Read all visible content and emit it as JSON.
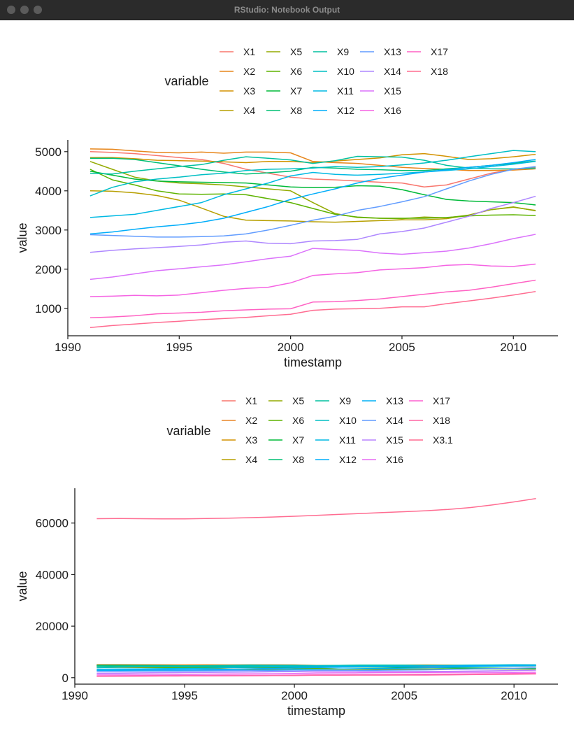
{
  "window": {
    "title": "RStudio: Notebook Output"
  },
  "colors": {
    "X1": "#F8766D",
    "X2": "#E7861B",
    "X3": "#D39200",
    "X4": "#B79F00",
    "X5": "#93AA00",
    "X6": "#5EB300",
    "X7": "#00BA38",
    "X8": "#00BF74",
    "X9": "#00C19F",
    "X10": "#00BFC4",
    "X11": "#00B9E3",
    "X12": "#00ADFA",
    "X13": "#619CFF",
    "X14": "#AE87FF",
    "X15": "#DB72FB",
    "X16": "#F564E3",
    "X17": "#FF61C3",
    "X18": "#FF6C91"
  },
  "colors2": {
    "X1": "#F8766D",
    "X2": "#E88526",
    "X3": "#D39200",
    "X4": "#B79F00",
    "X5": "#93AA00",
    "X6": "#5EB300",
    "X7": "#00BA38",
    "X8": "#00BF74",
    "X9": "#00C19F",
    "X10": "#00BFC4",
    "X11": "#00B9E3",
    "X12": "#00ADFA",
    "X13": "#00B0F6",
    "X14": "#619CFF",
    "X15": "#B983FF",
    "X16": "#E76BF3",
    "X17": "#FD61D1",
    "X18": "#FF67A4",
    "X3.1": "#FF6C91"
  },
  "chart_data": [
    {
      "type": "line",
      "xlabel": "timestamp",
      "ylabel": "value",
      "legend_title": "variable",
      "legend_position": "top",
      "grid": false,
      "xlim": [
        1990,
        2012
      ],
      "ylim": [
        300,
        5300
      ],
      "x_ticks": [
        "1990",
        "1995",
        "2000",
        "2005",
        "2010"
      ],
      "y_ticks": [
        "1000",
        "2000",
        "3000",
        "4000",
        "5000"
      ],
      "x_tick_values": [
        1990,
        1995,
        2000,
        2005,
        2010
      ],
      "y_tick_values": [
        1000,
        2000,
        3000,
        4000,
        5000
      ],
      "x": [
        1991,
        1992,
        1993,
        1994,
        1995,
        1996,
        1997,
        1998,
        1999,
        2000,
        2001,
        2002,
        2003,
        2004,
        2005,
        2006,
        2007,
        2008,
        2009,
        2010,
        2011
      ],
      "series": [
        {
          "name": "X1",
          "values": [
            5000,
            4980,
            4950,
            4900,
            4850,
            4800,
            4700,
            4550,
            4450,
            4350,
            4300,
            4280,
            4250,
            4220,
            4200,
            4100,
            4150,
            4300,
            4450,
            4550,
            4600
          ]
        },
        {
          "name": "X2",
          "values": [
            5070,
            5060,
            5020,
            4980,
            4970,
            4990,
            4960,
            4990,
            4990,
            4970,
            4750,
            4720,
            4700,
            4650,
            4600,
            4570,
            4550,
            4520,
            4520,
            4530,
            4560
          ]
        },
        {
          "name": "X3",
          "values": [
            4850,
            4850,
            4820,
            4780,
            4770,
            4760,
            4740,
            4720,
            4750,
            4750,
            4720,
            4760,
            4800,
            4840,
            4920,
            4950,
            4880,
            4800,
            4820,
            4870,
            4930
          ]
        },
        {
          "name": "X4",
          "values": [
            4000,
            3990,
            3950,
            3880,
            3760,
            3560,
            3350,
            3250,
            3240,
            3230,
            3210,
            3200,
            3220,
            3240,
            3260,
            3260,
            3290,
            3380,
            3520,
            3580,
            3500
          ]
        },
        {
          "name": "X5",
          "values": [
            4750,
            4550,
            4350,
            4250,
            4200,
            4180,
            4150,
            4100,
            4050,
            4000,
            3700,
            3420,
            3320,
            3300,
            3290,
            3330,
            3310,
            3380,
            3520,
            3590,
            3490
          ]
        },
        {
          "name": "X6",
          "values": [
            4550,
            4280,
            4150,
            4000,
            3920,
            3910,
            3920,
            3900,
            3800,
            3700,
            3550,
            3400,
            3330,
            3300,
            3300,
            3300,
            3320,
            3360,
            3380,
            3390,
            3370
          ]
        },
        {
          "name": "X7",
          "values": [
            4500,
            4400,
            4300,
            4250,
            4230,
            4220,
            4210,
            4200,
            4150,
            4100,
            4080,
            4090,
            4130,
            4120,
            4030,
            3900,
            3780,
            3740,
            3720,
            3700,
            3640
          ]
        },
        {
          "name": "X8",
          "values": [
            4830,
            4830,
            4800,
            4720,
            4640,
            4550,
            4480,
            4430,
            4460,
            4500,
            4600,
            4580,
            4550,
            4540,
            4520,
            4520,
            4560,
            4600,
            4650,
            4700,
            4760
          ]
        },
        {
          "name": "X9",
          "values": [
            4450,
            4430,
            4500,
            4560,
            4620,
            4670,
            4780,
            4870,
            4830,
            4790,
            4700,
            4770,
            4880,
            4870,
            4860,
            4780,
            4650,
            4580,
            4560,
            4560,
            4580
          ]
        },
        {
          "name": "X10",
          "values": [
            3870,
            4090,
            4230,
            4300,
            4350,
            4410,
            4450,
            4520,
            4550,
            4560,
            4580,
            4620,
            4600,
            4620,
            4660,
            4710,
            4780,
            4870,
            4950,
            5030,
            5000
          ]
        },
        {
          "name": "X11",
          "values": [
            3320,
            3360,
            3400,
            3500,
            3600,
            3700,
            3900,
            4050,
            4200,
            4380,
            4470,
            4420,
            4400,
            4420,
            4450,
            4480,
            4520,
            4560,
            4620,
            4680,
            4750
          ]
        },
        {
          "name": "X12",
          "values": [
            2900,
            2950,
            3020,
            3080,
            3130,
            3200,
            3300,
            3450,
            3600,
            3780,
            3920,
            4050,
            4200,
            4320,
            4400,
            4480,
            4540,
            4600,
            4650,
            4720,
            4800
          ]
        },
        {
          "name": "X13",
          "values": [
            2880,
            2860,
            2840,
            2820,
            2820,
            2830,
            2850,
            2900,
            3000,
            3120,
            3250,
            3350,
            3500,
            3600,
            3720,
            3850,
            4050,
            4250,
            4420,
            4550,
            4620
          ]
        },
        {
          "name": "X14",
          "values": [
            2430,
            2480,
            2520,
            2550,
            2580,
            2620,
            2690,
            2720,
            2660,
            2650,
            2720,
            2730,
            2760,
            2900,
            2960,
            3050,
            3200,
            3350,
            3550,
            3700,
            3860
          ]
        },
        {
          "name": "X15",
          "values": [
            1740,
            1800,
            1880,
            1960,
            2010,
            2060,
            2110,
            2190,
            2270,
            2330,
            2530,
            2500,
            2480,
            2410,
            2380,
            2420,
            2460,
            2540,
            2650,
            2780,
            2890
          ]
        },
        {
          "name": "X16",
          "values": [
            1300,
            1310,
            1330,
            1320,
            1340,
            1400,
            1460,
            1510,
            1540,
            1650,
            1840,
            1880,
            1910,
            1980,
            2010,
            2040,
            2100,
            2120,
            2080,
            2070,
            2130
          ]
        },
        {
          "name": "X17",
          "values": [
            760,
            780,
            810,
            860,
            880,
            900,
            940,
            960,
            980,
            990,
            1160,
            1170,
            1200,
            1240,
            1300,
            1360,
            1420,
            1460,
            1540,
            1630,
            1720
          ]
        },
        {
          "name": "X18",
          "values": [
            510,
            560,
            600,
            640,
            670,
            710,
            740,
            770,
            810,
            850,
            950,
            980,
            990,
            1000,
            1040,
            1040,
            1120,
            1190,
            1260,
            1340,
            1430
          ]
        }
      ]
    },
    {
      "type": "line",
      "xlabel": "timestamp",
      "ylabel": "value",
      "legend_title": "variable",
      "legend_position": "top",
      "grid": false,
      "xlim": [
        1990,
        2012
      ],
      "ylim": [
        -2500,
        73500
      ],
      "x_ticks": [
        "1990",
        "1995",
        "2000",
        "2005",
        "2010"
      ],
      "y_ticks": [
        "0",
        "20000",
        "40000",
        "60000"
      ],
      "x_tick_values": [
        1990,
        1995,
        2000,
        2005,
        2010
      ],
      "y_tick_values": [
        0,
        20000,
        40000,
        60000
      ],
      "x": [
        1991,
        1992,
        1993,
        1994,
        1995,
        1996,
        1997,
        1998,
        1999,
        2000,
        2001,
        2002,
        2003,
        2004,
        2005,
        2006,
        2007,
        2008,
        2009,
        2010,
        2011
      ],
      "series": [
        {
          "name": "X1",
          "values": [
            5000,
            4980,
            4950,
            4900,
            4850,
            4800,
            4700,
            4550,
            4450,
            4350,
            4300,
            4280,
            4250,
            4220,
            4200,
            4100,
            4150,
            4300,
            4450,
            4550,
            4600
          ]
        },
        {
          "name": "X2",
          "values": [
            5070,
            5060,
            5020,
            4980,
            4970,
            4990,
            4960,
            4990,
            4990,
            4970,
            4750,
            4720,
            4700,
            4650,
            4600,
            4570,
            4550,
            4520,
            4520,
            4530,
            4560
          ]
        },
        {
          "name": "X3",
          "values": [
            4850,
            4850,
            4820,
            4780,
            4770,
            4760,
            4740,
            4720,
            4750,
            4750,
            4720,
            4760,
            4800,
            4840,
            4920,
            4950,
            4880,
            4800,
            4820,
            4870,
            4930
          ]
        },
        {
          "name": "X4",
          "values": [
            4000,
            3990,
            3950,
            3880,
            3760,
            3560,
            3350,
            3250,
            3240,
            3230,
            3210,
            3200,
            3220,
            3240,
            3260,
            3260,
            3290,
            3380,
            3520,
            3580,
            3500
          ]
        },
        {
          "name": "X5",
          "values": [
            4750,
            4550,
            4350,
            4250,
            4200,
            4180,
            4150,
            4100,
            4050,
            4000,
            3700,
            3420,
            3320,
            3300,
            3290,
            3330,
            3310,
            3380,
            3520,
            3590,
            3490
          ]
        },
        {
          "name": "X6",
          "values": [
            4550,
            4280,
            4150,
            4000,
            3920,
            3910,
            3920,
            3900,
            3800,
            3700,
            3550,
            3400,
            3330,
            3300,
            3300,
            3300,
            3320,
            3360,
            3380,
            3390,
            3370
          ]
        },
        {
          "name": "X7",
          "values": [
            4500,
            4400,
            4300,
            4250,
            4230,
            4220,
            4210,
            4200,
            4150,
            4100,
            4080,
            4090,
            4130,
            4120,
            4030,
            3900,
            3780,
            3740,
            3720,
            3700,
            3640
          ]
        },
        {
          "name": "X8",
          "values": [
            4830,
            4830,
            4800,
            4720,
            4640,
            4550,
            4480,
            4430,
            4460,
            4500,
            4600,
            4580,
            4550,
            4540,
            4520,
            4520,
            4560,
            4600,
            4650,
            4700,
            4760
          ]
        },
        {
          "name": "X9",
          "values": [
            4450,
            4430,
            4500,
            4560,
            4620,
            4670,
            4780,
            4870,
            4830,
            4790,
            4700,
            4770,
            4880,
            4870,
            4860,
            4780,
            4650,
            4580,
            4560,
            4560,
            4580
          ]
        },
        {
          "name": "X10",
          "values": [
            3870,
            4090,
            4230,
            4300,
            4350,
            4410,
            4450,
            4520,
            4550,
            4560,
            4580,
            4620,
            4600,
            4620,
            4660,
            4710,
            4780,
            4870,
            4950,
            5030,
            5000
          ]
        },
        {
          "name": "X11",
          "values": [
            3320,
            3360,
            3400,
            3500,
            3600,
            3700,
            3900,
            4050,
            4200,
            4380,
            4470,
            4420,
            4400,
            4420,
            4450,
            4480,
            4520,
            4560,
            4620,
            4680,
            4750
          ]
        },
        {
          "name": "X12",
          "values": [
            2900,
            2950,
            3020,
            3080,
            3130,
            3200,
            3300,
            3450,
            3600,
            3780,
            3920,
            4050,
            4200,
            4320,
            4400,
            4480,
            4540,
            4600,
            4650,
            4720,
            4800
          ]
        },
        {
          "name": "X13",
          "values": [
            2880,
            2860,
            2840,
            2820,
            2820,
            2830,
            2850,
            2900,
            3000,
            3120,
            3250,
            3350,
            3500,
            3600,
            3720,
            3850,
            4050,
            4250,
            4420,
            4550,
            4620
          ]
        },
        {
          "name": "X14",
          "values": [
            2430,
            2480,
            2520,
            2550,
            2580,
            2620,
            2690,
            2720,
            2660,
            2650,
            2720,
            2730,
            2760,
            2900,
            2960,
            3050,
            3200,
            3350,
            3550,
            3700,
            3860
          ]
        },
        {
          "name": "X15",
          "values": [
            1740,
            1800,
            1880,
            1960,
            2010,
            2060,
            2110,
            2190,
            2270,
            2330,
            2530,
            2500,
            2480,
            2410,
            2380,
            2420,
            2460,
            2540,
            2650,
            2780,
            2890
          ]
        },
        {
          "name": "X16",
          "values": [
            1300,
            1310,
            1330,
            1320,
            1340,
            1400,
            1460,
            1510,
            1540,
            1650,
            1840,
            1880,
            1910,
            1980,
            2010,
            2040,
            2100,
            2120,
            2080,
            2070,
            2130
          ]
        },
        {
          "name": "X17",
          "values": [
            760,
            780,
            810,
            860,
            880,
            900,
            940,
            960,
            980,
            990,
            1160,
            1170,
            1200,
            1240,
            1300,
            1360,
            1420,
            1460,
            1540,
            1630,
            1720
          ]
        },
        {
          "name": "X18",
          "values": [
            510,
            560,
            600,
            640,
            670,
            710,
            740,
            770,
            810,
            850,
            950,
            980,
            990,
            1000,
            1040,
            1040,
            1120,
            1190,
            1260,
            1340,
            1430
          ]
        },
        {
          "name": "X3.1",
          "values": [
            61700,
            61750,
            61700,
            61650,
            61650,
            61750,
            61900,
            62100,
            62350,
            62650,
            63000,
            63350,
            63700,
            64050,
            64400,
            64800,
            65300,
            66000,
            67000,
            68200,
            69500
          ]
        }
      ]
    }
  ]
}
